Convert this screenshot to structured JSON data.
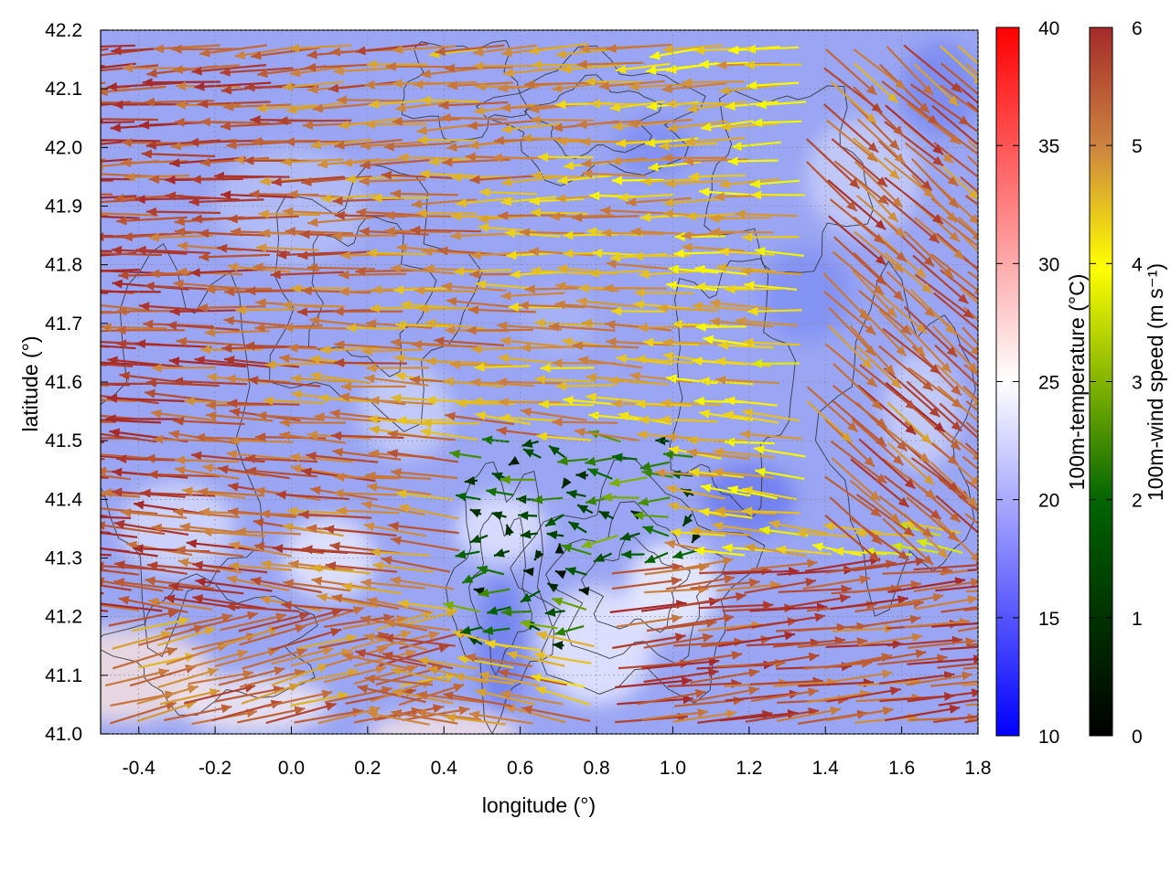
{
  "chart_data": {
    "type": "vector-field",
    "xlabel": "longitude (°)",
    "ylabel": "latitude (°)",
    "xlim": [
      -0.5,
      1.8
    ],
    "ylim": [
      41.0,
      42.2
    ],
    "x_ticks": [
      "-0.4",
      "-0.2",
      "0.0",
      "0.2",
      "0.4",
      "0.6",
      "0.8",
      "1.0",
      "1.2",
      "1.4",
      "1.6",
      "1.8"
    ],
    "y_ticks": [
      "41.0",
      "41.1",
      "41.2",
      "41.3",
      "41.4",
      "41.5",
      "41.6",
      "41.7",
      "41.8",
      "41.9",
      "42.0",
      "42.1",
      "42.2"
    ],
    "temperature_colorbar": {
      "label": "100m-temperature (°C)",
      "range": [
        10,
        40
      ],
      "ticks": [
        "10",
        "15",
        "20",
        "25",
        "30",
        "35",
        "40"
      ],
      "colors": [
        "#0000ff",
        "#ffffff",
        "#ff0000"
      ]
    },
    "wind_colorbar": {
      "label": "100m-wind speed (m s⁻¹)",
      "range": [
        0,
        6
      ],
      "ticks": [
        "0",
        "1",
        "2",
        "3",
        "4",
        "5",
        "6"
      ],
      "colors": [
        "#000000",
        "#006400",
        "#ffff00",
        "#cd853f",
        "#a52a2a"
      ]
    },
    "field_description": {
      "background_temperature_c": [
        18,
        24
      ],
      "wind_speed_ms": [
        0,
        6
      ],
      "dominant_flow": "westward (east-to-west) in north and center; eastward in south-east"
    }
  }
}
